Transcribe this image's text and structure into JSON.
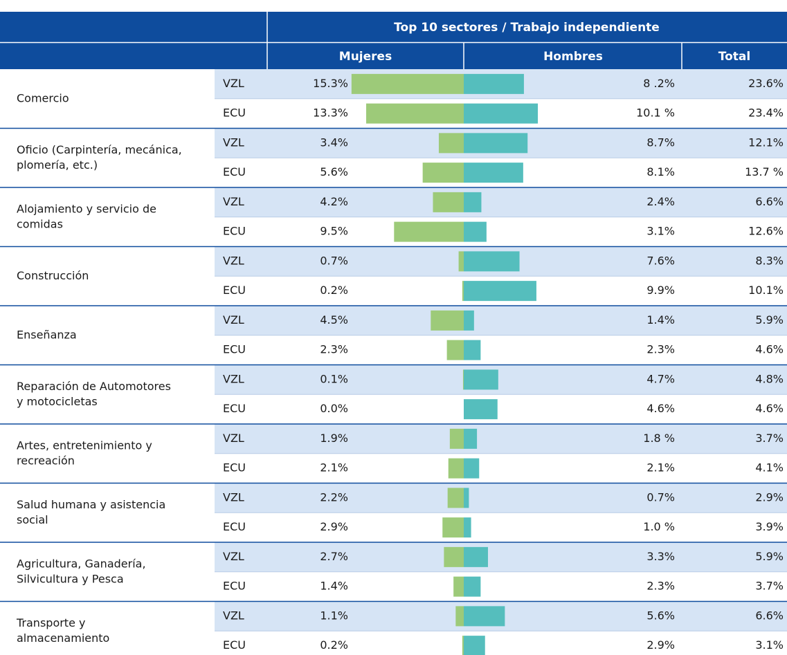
{
  "table": {
    "header": {
      "title": "Top 10 sectores / Trabajo independiente",
      "columns": [
        "Mujeres",
        "Hombres",
        "Total"
      ]
    },
    "colors": {
      "mujeres": "#9dca79",
      "hombres": "#55bebd"
    },
    "rows": [
      {
        "sector": [
          "Comercio"
        ],
        "groups": [
          {
            "country": "VZL",
            "mujeres": 15.3,
            "mujeres_label": "15.3%",
            "hombres": 8.2,
            "hombres_label": "8 .2%",
            "total": "23.6%"
          },
          {
            "country": "ECU",
            "mujeres": 13.3,
            "mujeres_label": "13.3%",
            "hombres": 10.1,
            "hombres_label": "10.1 %",
            "total": "23.4%"
          }
        ]
      },
      {
        "sector": [
          "Oficio (Carpintería, mecánica,",
          "plomería, etc.)"
        ],
        "groups": [
          {
            "country": "VZL",
            "mujeres": 3.4,
            "mujeres_label": "3.4%",
            "hombres": 8.7,
            "hombres_label": "8.7%",
            "total": "12.1%"
          },
          {
            "country": "ECU",
            "mujeres": 5.6,
            "mujeres_label": "5.6%",
            "hombres": 8.1,
            "hombres_label": "8.1%",
            "total": "13.7 %"
          }
        ]
      },
      {
        "sector": [
          "Alojamiento y servicio de",
          "comidas"
        ],
        "groups": [
          {
            "country": "VZL",
            "mujeres": 4.2,
            "mujeres_label": "4.2%",
            "hombres": 2.4,
            "hombres_label": "2.4%",
            "total": "6.6%"
          },
          {
            "country": "ECU",
            "mujeres": 9.5,
            "mujeres_label": "9.5%",
            "hombres": 3.1,
            "hombres_label": "3.1%",
            "total": "12.6%"
          }
        ]
      },
      {
        "sector": [
          "Construcción"
        ],
        "groups": [
          {
            "country": "VZL",
            "mujeres": 0.7,
            "mujeres_label": "0.7%",
            "hombres": 7.6,
            "hombres_label": "7.6%",
            "total": "8.3%"
          },
          {
            "country": "ECU",
            "mujeres": 0.2,
            "mujeres_label": "0.2%",
            "hombres": 9.9,
            "hombres_label": "9.9%",
            "total": "10.1%"
          }
        ]
      },
      {
        "sector": [
          "Enseñanza"
        ],
        "groups": [
          {
            "country": "VZL",
            "mujeres": 4.5,
            "mujeres_label": "4.5%",
            "hombres": 1.4,
            "hombres_label": "1.4%",
            "total": "5.9%"
          },
          {
            "country": "ECU",
            "mujeres": 2.3,
            "mujeres_label": "2.3%",
            "hombres": 2.3,
            "hombres_label": "2.3%",
            "total": "4.6%"
          }
        ]
      },
      {
        "sector": [
          "Reparación de Automotores",
          "y motocicletas"
        ],
        "groups": [
          {
            "country": "VZL",
            "mujeres": 0.1,
            "mujeres_label": "0.1%",
            "hombres": 4.7,
            "hombres_label": "4.7%",
            "total": "4.8%"
          },
          {
            "country": "ECU",
            "mujeres": 0.0,
            "mujeres_label": "0.0%",
            "hombres": 4.6,
            "hombres_label": "4.6%",
            "total": "4.6%"
          }
        ]
      },
      {
        "sector": [
          "Artes, entretenimiento y",
          "recreación"
        ],
        "groups": [
          {
            "country": "VZL",
            "mujeres": 1.9,
            "mujeres_label": "1.9%",
            "hombres": 1.8,
            "hombres_label": "1.8 %",
            "total": "3.7%"
          },
          {
            "country": "ECU",
            "mujeres": 2.1,
            "mujeres_label": "2.1%",
            "hombres": 2.1,
            "hombres_label": "2.1%",
            "total": "4.1%"
          }
        ]
      },
      {
        "sector": [
          "Salud humana y asistencia",
          "social"
        ],
        "groups": [
          {
            "country": "VZL",
            "mujeres": 2.2,
            "mujeres_label": "2.2%",
            "hombres": 0.7,
            "hombres_label": "0.7%",
            "total": "2.9%"
          },
          {
            "country": "ECU",
            "mujeres": 2.9,
            "mujeres_label": "2.9%",
            "hombres": 1.0,
            "hombres_label": "1.0 %",
            "total": "3.9%"
          }
        ]
      },
      {
        "sector": [
          "Agricultura, Ganadería,",
          "Silvicultura y Pesca"
        ],
        "groups": [
          {
            "country": "VZL",
            "mujeres": 2.7,
            "mujeres_label": "2.7%",
            "hombres": 3.3,
            "hombres_label": "3.3%",
            "total": "5.9%"
          },
          {
            "country": "ECU",
            "mujeres": 1.4,
            "mujeres_label": "1.4%",
            "hombres": 2.3,
            "hombres_label": "2.3%",
            "total": "3.7%"
          }
        ]
      },
      {
        "sector": [
          "Transporte y",
          "almacenamiento"
        ],
        "groups": [
          {
            "country": "VZL",
            "mujeres": 1.1,
            "mujeres_label": "1.1%",
            "hombres": 5.6,
            "hombres_label": "5.6%",
            "total": "6.6%"
          },
          {
            "country": "ECU",
            "mujeres": 0.2,
            "mujeres_label": "0.2%",
            "hombres": 2.9,
            "hombres_label": "2.9%",
            "total": "3.1%"
          }
        ]
      }
    ]
  }
}
